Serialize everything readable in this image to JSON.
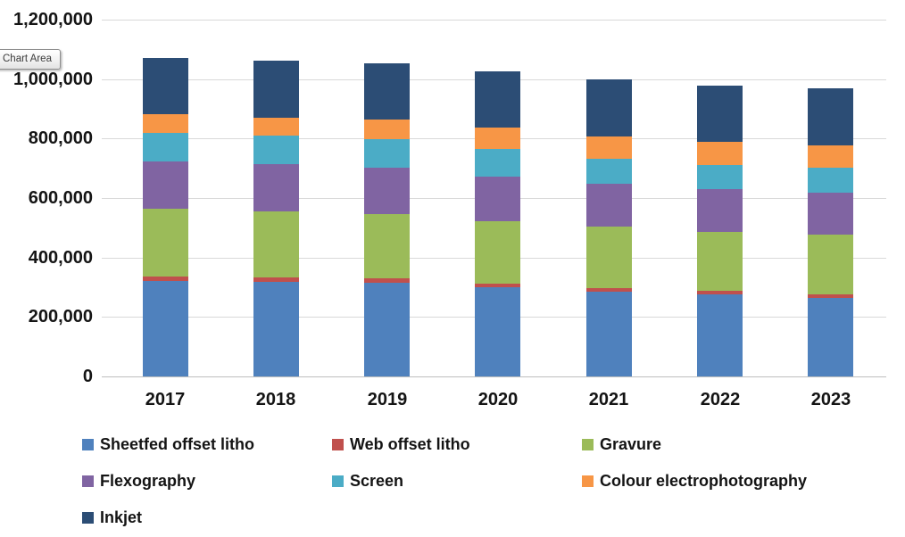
{
  "tooltip": {
    "label": "Chart Area"
  },
  "chart_data": {
    "type": "bar",
    "stacked": true,
    "title": "",
    "xlabel": "",
    "ylabel": "",
    "categories": [
      "2017",
      "2018",
      "2019",
      "2020",
      "2021",
      "2022",
      "2023"
    ],
    "series": [
      {
        "name": "Sheetfed offset litho",
        "color": "#4F81BD",
        "values": [
          320000,
          318000,
          315000,
          300000,
          285000,
          275000,
          264000
        ]
      },
      {
        "name": "Web offset litho",
        "color": "#C0504D",
        "values": [
          15000,
          15000,
          14000,
          13000,
          13000,
          12000,
          12000
        ]
      },
      {
        "name": "Gravure",
        "color": "#9BBB59",
        "values": [
          230000,
          222000,
          218000,
          210000,
          205000,
          198000,
          200000
        ]
      },
      {
        "name": "Flexography",
        "color": "#8064A2",
        "values": [
          157000,
          158000,
          155000,
          150000,
          145000,
          145000,
          143000
        ]
      },
      {
        "name": "Screen",
        "color": "#4BACC6",
        "values": [
          96000,
          98000,
          95000,
          92000,
          83000,
          80000,
          82000
        ]
      },
      {
        "name": "Colour electrophotography",
        "color": "#F79646",
        "values": [
          63000,
          60000,
          66000,
          72000,
          77000,
          78000,
          75000
        ]
      },
      {
        "name": "Inkjet",
        "color": "#2C4D75",
        "values": [
          189000,
          192000,
          190000,
          188000,
          190000,
          190000,
          192000
        ]
      }
    ],
    "totals": [
      1070000,
      1063000,
      1053000,
      1025000,
      998000,
      978000,
      968000
    ],
    "ylim": [
      0,
      1200000
    ],
    "y_ticks": [
      0,
      200000,
      400000,
      600000,
      800000,
      1000000,
      1200000
    ],
    "y_tick_labels": [
      "0",
      "200,000",
      "400,000",
      "600,000",
      "800,000",
      "1,000,000",
      "1,200,000"
    ],
    "grid": true,
    "legend_position": "bottom",
    "axis_colors": {
      "gridline": "#D9D9D9",
      "axis_line": "#BFBFBF",
      "label": "#141414"
    }
  }
}
